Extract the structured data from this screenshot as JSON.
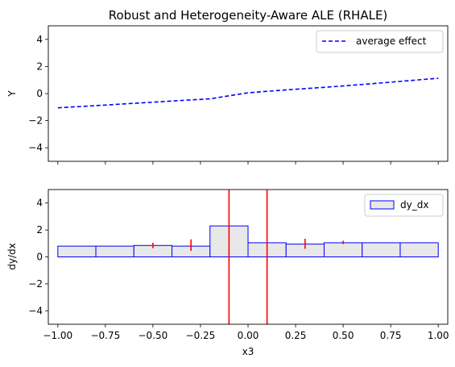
{
  "chart_data": [
    {
      "type": "line",
      "title": "Robust and Heterogeneity-Aware ALE (RHALE)",
      "xlabel": "",
      "ylabel": "Y",
      "xlim": [
        -1.05,
        1.05
      ],
      "ylim": [
        -5,
        5
      ],
      "xticks": [
        -1.0,
        -0.75,
        -0.5,
        -0.25,
        0.0,
        0.25,
        0.5,
        0.75,
        1.0
      ],
      "xtick_labels_visible": false,
      "yticks": [
        4,
        2,
        0,
        -2,
        -4
      ],
      "ytick_labels": [
        "4",
        "2",
        "0",
        "−2",
        "−4"
      ],
      "legend": {
        "position": "upper-right",
        "entries": [
          "average effect"
        ]
      },
      "series": [
        {
          "name": "average effect",
          "color": "#0000ff",
          "style": "dashed",
          "x": [
            -1.0,
            -0.8,
            -0.6,
            -0.4,
            -0.2,
            0.0,
            0.2,
            0.4,
            0.6,
            0.8,
            1.0
          ],
          "y": [
            -1.05,
            -0.89,
            -0.72,
            -0.55,
            -0.39,
            0.06,
            0.27,
            0.46,
            0.67,
            0.9,
            1.13
          ]
        }
      ]
    },
    {
      "type": "bar",
      "title": "",
      "xlabel": "x3",
      "ylabel": "dy/dx",
      "xlim": [
        -1.05,
        1.05
      ],
      "ylim": [
        -5,
        5
      ],
      "xticks": [
        -1.0,
        -0.75,
        -0.5,
        -0.25,
        0.0,
        0.25,
        0.5,
        0.75,
        1.0
      ],
      "xtick_labels": [
        "−1.00",
        "−0.75",
        "−0.50",
        "−0.25",
        "0.00",
        "0.25",
        "0.50",
        "0.75",
        "1.00"
      ],
      "yticks": [
        4,
        2,
        0,
        -2,
        -4
      ],
      "ytick_labels": [
        "4",
        "2",
        "0",
        "−2",
        "−4"
      ],
      "legend": {
        "position": "upper-right",
        "entries": [
          "dy_dx"
        ]
      },
      "bar_fill": "#e8e8e8",
      "bar_edge": "#0000ff",
      "bins": [
        {
          "x0": -1.0,
          "x1": -0.8,
          "value": 0.8
        },
        {
          "x0": -0.8,
          "x1": -0.6,
          "value": 0.8
        },
        {
          "x0": -0.6,
          "x1": -0.4,
          "value": 0.85
        },
        {
          "x0": -0.4,
          "x1": -0.2,
          "value": 0.8
        },
        {
          "x0": -0.2,
          "x1": 0.0,
          "value": 2.3
        },
        {
          "x0": 0.0,
          "x1": 0.2,
          "value": 1.05
        },
        {
          "x0": 0.2,
          "x1": 0.4,
          "value": 0.95
        },
        {
          "x0": 0.4,
          "x1": 0.6,
          "value": 1.05
        },
        {
          "x0": 0.6,
          "x1": 0.8,
          "value": 1.05
        },
        {
          "x0": 0.8,
          "x1": 1.0,
          "value": 1.05
        }
      ],
      "error_bars": [
        {
          "x": -0.5,
          "low": 0.65,
          "high": 1.05
        },
        {
          "x": -0.3,
          "low": 0.45,
          "high": 1.3
        },
        {
          "x": 0.3,
          "low": 0.6,
          "high": 1.35
        },
        {
          "x": 0.5,
          "low": 0.95,
          "high": 1.2
        }
      ],
      "error_color": "#ff0000",
      "vlines": [
        -0.1,
        0.1
      ],
      "vline_color": "#ff0000"
    }
  ]
}
